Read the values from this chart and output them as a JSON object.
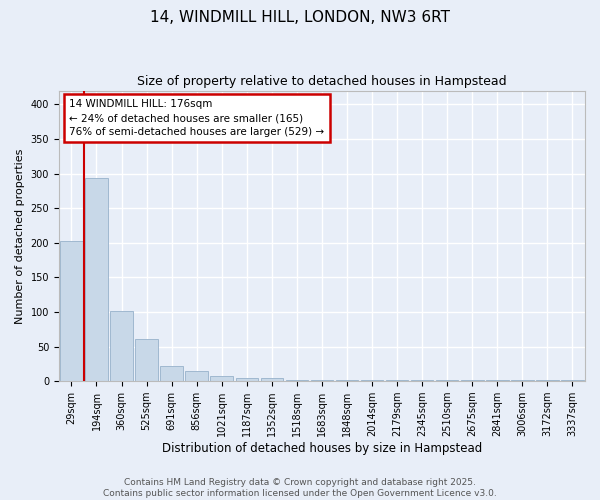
{
  "title": "14, WINDMILL HILL, LONDON, NW3 6RT",
  "subtitle": "Size of property relative to detached houses in Hampstead",
  "xlabel": "Distribution of detached houses by size in Hampstead",
  "ylabel": "Number of detached properties",
  "categories": [
    "29sqm",
    "194sqm",
    "360sqm",
    "525sqm",
    "691sqm",
    "856sqm",
    "1021sqm",
    "1187sqm",
    "1352sqm",
    "1518sqm",
    "1683sqm",
    "1848sqm",
    "2014sqm",
    "2179sqm",
    "2345sqm",
    "2510sqm",
    "2675sqm",
    "2841sqm",
    "3006sqm",
    "3172sqm",
    "3337sqm"
  ],
  "values": [
    202,
    293,
    101,
    61,
    22,
    15,
    8,
    4,
    4,
    1,
    1,
    1,
    1,
    1,
    1,
    1,
    1,
    1,
    1,
    2,
    1
  ],
  "bar_color": "#c8d8e8",
  "bar_edge_color": "#a0b8d0",
  "background_color": "#e8eef8",
  "grid_color": "#ffffff",
  "annotation_text": "14 WINDMILL HILL: 176sqm\n← 24% of detached houses are smaller (165)\n76% of semi-detached houses are larger (529) →",
  "annotation_box_color": "#ffffff",
  "annotation_box_edge_color": "#cc0000",
  "vline_color": "#cc0000",
  "ylim": [
    0,
    420
  ],
  "yticks": [
    0,
    50,
    100,
    150,
    200,
    250,
    300,
    350,
    400
  ],
  "footer_text": "Contains HM Land Registry data © Crown copyright and database right 2025.\nContains public sector information licensed under the Open Government Licence v3.0.",
  "title_fontsize": 11,
  "subtitle_fontsize": 9,
  "xlabel_fontsize": 8.5,
  "ylabel_fontsize": 8,
  "tick_fontsize": 7,
  "footer_fontsize": 6.5
}
